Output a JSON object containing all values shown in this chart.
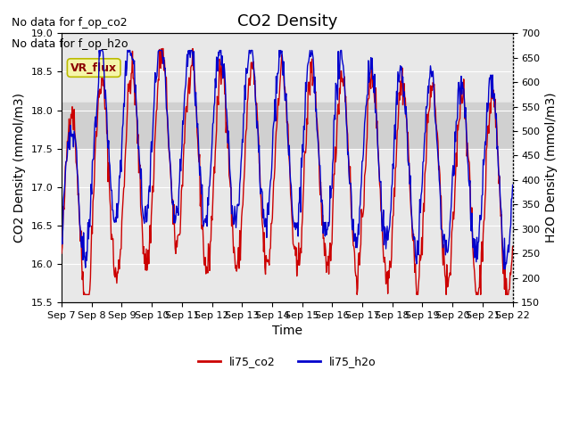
{
  "title": "CO2 Density",
  "xlabel": "Time",
  "ylabel_left": "CO2 Density (mmol/m3)",
  "ylabel_right": "H2O Density (mmol/m3)",
  "ylim_left": [
    15.5,
    19.0
  ],
  "ylim_right": [
    150,
    700
  ],
  "yticks_left": [
    15.5,
    16.0,
    16.5,
    17.0,
    17.5,
    18.0,
    18.5,
    19.0
  ],
  "yticks_right": [
    150,
    200,
    250,
    300,
    350,
    400,
    450,
    500,
    550,
    600,
    650,
    700
  ],
  "xtick_labels": [
    "Sep 7",
    "Sep 8",
    "Sep 9",
    "Sep 10",
    "Sep 11",
    "Sep 12",
    "Sep 13",
    "Sep 14",
    "Sep 15",
    "Sep 16",
    "Sep 17",
    "Sep 18",
    "Sep 19",
    "Sep 20",
    "Sep 21",
    "Sep 22"
  ],
  "annotations": [
    "No data for f_op_co2",
    "No data for f_op_h2o"
  ],
  "vr_flux_label": "VR_flux",
  "legend_entries": [
    "li75_co2",
    "li75_h2o"
  ],
  "co2_color": "#cc0000",
  "h2o_color": "#0000cc",
  "background_color": "#ffffff",
  "plot_bg_color": "#e8e8e8",
  "shaded_band_color": "#d0d0d0",
  "grid_color": "#ffffff",
  "title_fontsize": 13,
  "axis_label_fontsize": 10,
  "tick_fontsize": 8,
  "annotation_fontsize": 9
}
